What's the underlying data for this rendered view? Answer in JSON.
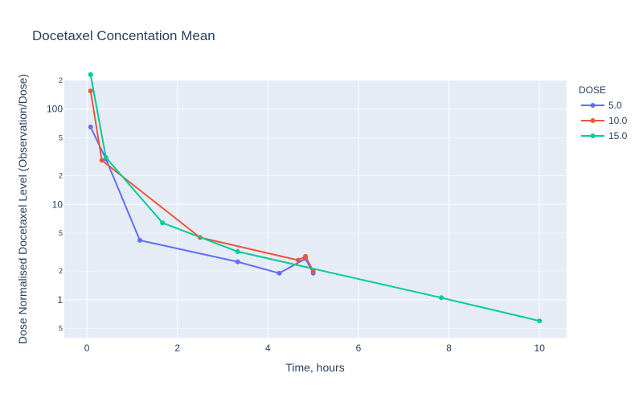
{
  "chart_data": {
    "type": "line",
    "title": "Docetaxel Concentation Mean",
    "xlabel": "Time, hours",
    "ylabel": "Dose Normalised Docetaxel Level (Observation/Dose)",
    "xlim": [
      -0.5,
      10.6
    ],
    "ylim_log": [
      0.4,
      200
    ],
    "y_scale": "log",
    "x_ticks": [
      0,
      2,
      4,
      6,
      8,
      10
    ],
    "y_major_ticks": [
      {
        "value": 1,
        "label": "1"
      },
      {
        "value": 10,
        "label": "10"
      },
      {
        "value": 100,
        "label": "100"
      }
    ],
    "y_minor_ticks": [
      {
        "value": 0.5,
        "label": "5"
      },
      {
        "value": 2,
        "label": "2"
      },
      {
        "value": 5,
        "label": "5"
      },
      {
        "value": 20,
        "label": "2"
      },
      {
        "value": 50,
        "label": "5"
      },
      {
        "value": 200,
        "label": "2"
      }
    ],
    "grid": true,
    "legend_title": "DOSE",
    "legend_position": "right",
    "series": [
      {
        "name": "5.0",
        "color": "#636efa",
        "x": [
          0.08,
          0.42,
          1.17,
          3.33,
          4.25,
          4.83,
          5.0
        ],
        "y": [
          65,
          30,
          4.2,
          2.5,
          1.9,
          2.7,
          1.9
        ]
      },
      {
        "name": "10.0",
        "color": "#ef553b",
        "x": [
          0.08,
          0.33,
          2.5,
          4.67,
          4.83,
          5.0
        ],
        "y": [
          155,
          29,
          4.5,
          2.6,
          2.85,
          2.0
        ]
      },
      {
        "name": "15.0",
        "color": "#00cc96",
        "x": [
          0.08,
          0.42,
          1.67,
          3.33,
          7.83,
          10.0
        ],
        "y": [
          230,
          31,
          6.4,
          3.2,
          1.05,
          0.6
        ]
      }
    ]
  }
}
